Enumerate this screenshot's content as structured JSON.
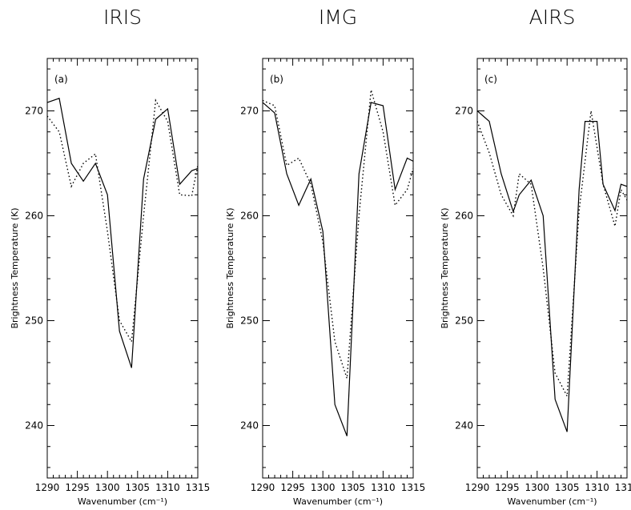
{
  "chart_data": [
    {
      "type": "line",
      "title": "IRIS",
      "panel_label": "(a)",
      "xlabel": "Wavenumber (cm⁻¹)",
      "ylabel": "Brightness Temperature (K)",
      "xlim": [
        1290,
        1315
      ],
      "ylim": [
        235,
        275
      ],
      "xticks": [
        1290,
        1295,
        1300,
        1305,
        1310,
        1315
      ],
      "yticks": [
        240,
        250,
        260,
        270
      ],
      "series": [
        {
          "style": "solid",
          "x": [
            1290,
            1292,
            1294,
            1296,
            1298,
            1300,
            1302,
            1304,
            1306,
            1308,
            1310,
            1312,
            1314,
            1315
          ],
          "y": [
            270.8,
            271.2,
            265.0,
            263.3,
            265.0,
            262.0,
            249.0,
            245.5,
            263.5,
            269.2,
            270.2,
            263.0,
            264.3,
            264.5
          ]
        },
        {
          "style": "dotted",
          "x": [
            1290,
            1292,
            1294,
            1296,
            1298,
            1300,
            1302,
            1304,
            1306,
            1308,
            1310,
            1312,
            1314,
            1315
          ],
          "y": [
            269.5,
            268.0,
            262.8,
            265.0,
            265.9,
            258.5,
            250.0,
            248.0,
            260.0,
            271.0,
            269.0,
            262.0,
            261.9,
            264.8
          ]
        }
      ]
    },
    {
      "type": "line",
      "title": "IMG",
      "panel_label": "(b)",
      "xlabel": "Wavenumber (cm⁻¹)",
      "ylabel": "Brightness Temperature (K)",
      "xlim": [
        1290,
        1315
      ],
      "ylim": [
        235,
        275
      ],
      "xticks": [
        1290,
        1295,
        1300,
        1305,
        1310,
        1315
      ],
      "yticks": [
        240,
        250,
        260,
        270
      ],
      "series": [
        {
          "style": "solid",
          "x": [
            1290,
            1292,
            1294,
            1296,
            1298,
            1300,
            1302,
            1304,
            1306,
            1308,
            1310,
            1312,
            1314,
            1315
          ],
          "y": [
            270.8,
            269.8,
            264.0,
            261.0,
            263.5,
            258.5,
            242.0,
            239.0,
            264.0,
            270.8,
            270.5,
            262.5,
            265.5,
            265.2
          ]
        },
        {
          "style": "dotted",
          "x": [
            1290,
            1292,
            1294,
            1296,
            1298,
            1300,
            1302,
            1304,
            1306,
            1308,
            1310,
            1312,
            1314,
            1315
          ],
          "y": [
            271.0,
            270.5,
            264.8,
            265.5,
            263.0,
            257.5,
            248.0,
            244.5,
            260.0,
            272.0,
            268.0,
            261.0,
            262.5,
            264.5
          ]
        }
      ]
    },
    {
      "type": "line",
      "title": "AIRS",
      "panel_label": "(c)",
      "xlabel": "Wavenumber (cm⁻¹)",
      "ylabel": "Brightness Temperature (K)",
      "xlim": [
        1290,
        1315
      ],
      "ylim": [
        235,
        275
      ],
      "xticks": [
        1290,
        1295,
        1300,
        1305,
        1310,
        1315
      ],
      "yticks": [
        240,
        250,
        260,
        270
      ],
      "series": [
        {
          "style": "solid",
          "x": [
            1290,
            1291,
            1292,
            1294,
            1296,
            1297,
            1299,
            1301,
            1303,
            1305,
            1307,
            1308,
            1310,
            1311,
            1313,
            1314,
            1315
          ],
          "y": [
            270.0,
            269.5,
            269.0,
            264.0,
            260.4,
            262.0,
            263.4,
            260.0,
            242.5,
            239.4,
            262.5,
            269.0,
            269.0,
            263.0,
            260.5,
            263.0,
            262.8
          ]
        },
        {
          "style": "dotted",
          "x": [
            1290,
            1292,
            1294,
            1296,
            1297,
            1299,
            1301,
            1303,
            1305,
            1307,
            1309,
            1311,
            1313,
            1314,
            1315
          ],
          "y": [
            269.0,
            266.0,
            262.0,
            260.0,
            264.0,
            263.0,
            255.0,
            245.0,
            242.8,
            260.5,
            270.0,
            263.0,
            259.0,
            262.5,
            261.5
          ]
        }
      ]
    }
  ]
}
